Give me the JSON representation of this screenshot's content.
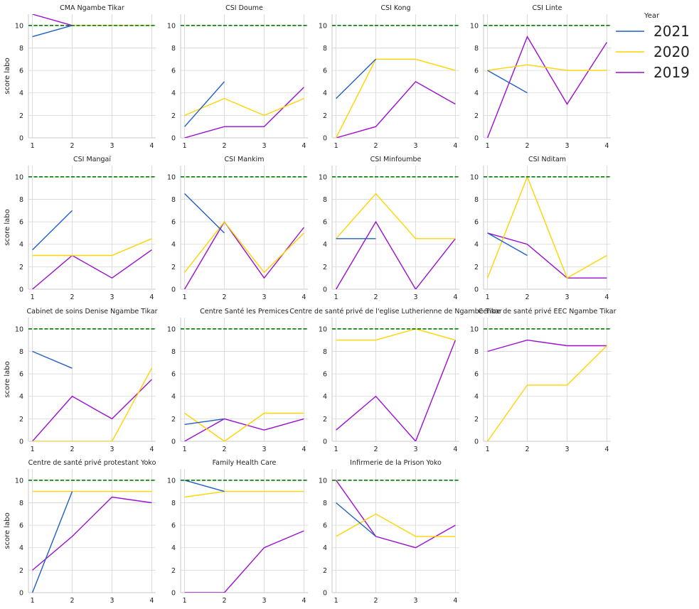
{
  "chart_data": {
    "type": "line",
    "layout": "facet-grid",
    "ylabel": "score labo",
    "xticks": [
      1,
      2,
      3,
      4
    ],
    "yticks": [
      0,
      2,
      4,
      6,
      8,
      10
    ],
    "xlim": [
      0.9,
      4.1
    ],
    "ylim": [
      0,
      11
    ],
    "grid": true,
    "reference_line": {
      "y": 10,
      "color": "#007a00",
      "style": "dashed"
    },
    "legend": {
      "title": "Year",
      "placement": "right",
      "entries": [
        {
          "name": "2021",
          "color": "#1f5fc4"
        },
        {
          "name": "2020",
          "color": "#ffd400"
        },
        {
          "name": "2019",
          "color": "#9b0fd0"
        }
      ]
    },
    "panels": [
      {
        "title": "CMA Ngambe Tikar",
        "series": {
          "2021": [
            [
              1,
              9
            ],
            [
              2,
              10
            ]
          ],
          "2020": [
            [
              2,
              10
            ],
            [
              3,
              10
            ],
            [
              4,
              10
            ]
          ],
          "2019": [
            [
              1,
              11
            ],
            [
              2,
              10
            ]
          ]
        }
      },
      {
        "title": "CSI Doume",
        "series": {
          "2021": [
            [
              1,
              1
            ],
            [
              2,
              5
            ]
          ],
          "2020": [
            [
              1,
              2
            ],
            [
              2,
              3.5
            ],
            [
              3,
              2
            ],
            [
              4,
              3.5
            ]
          ],
          "2019": [
            [
              1,
              0
            ],
            [
              2,
              1
            ],
            [
              3,
              1
            ],
            [
              4,
              4.5
            ]
          ]
        }
      },
      {
        "title": "CSI Kong",
        "series": {
          "2021": [
            [
              1,
              3.5
            ],
            [
              2,
              7
            ]
          ],
          "2020": [
            [
              1,
              0
            ],
            [
              2,
              7
            ],
            [
              3,
              7
            ],
            [
              4,
              6
            ]
          ],
          "2019": [
            [
              1,
              0
            ],
            [
              2,
              1
            ],
            [
              3,
              5
            ],
            [
              4,
              3
            ]
          ]
        }
      },
      {
        "title": "CSI Linte",
        "series": {
          "2021": [
            [
              1,
              6
            ],
            [
              2,
              4
            ]
          ],
          "2020": [
            [
              1,
              6
            ],
            [
              2,
              6.5
            ],
            [
              3,
              6
            ],
            [
              4,
              6
            ]
          ],
          "2019": [
            [
              1,
              0
            ],
            [
              2,
              9
            ],
            [
              3,
              3
            ],
            [
              4,
              8.5
            ]
          ]
        }
      },
      {
        "title": "CSI Mangaï",
        "series": {
          "2021": [
            [
              1,
              3.5
            ],
            [
              2,
              7
            ]
          ],
          "2020": [
            [
              1,
              3
            ],
            [
              2,
              3
            ],
            [
              3,
              3
            ],
            [
              4,
              4.5
            ]
          ],
          "2019": [
            [
              1,
              0
            ],
            [
              2,
              3
            ],
            [
              3,
              1
            ],
            [
              4,
              3.5
            ]
          ]
        }
      },
      {
        "title": "CSI Mankim",
        "series": {
          "2021": [
            [
              1,
              8.5
            ],
            [
              2,
              5
            ]
          ],
          "2020": [
            [
              1,
              1.5
            ],
            [
              2,
              6
            ],
            [
              3,
              1.5
            ],
            [
              4,
              5
            ]
          ],
          "2019": [
            [
              1,
              0
            ],
            [
              2,
              6
            ],
            [
              3,
              1
            ],
            [
              4,
              5.5
            ]
          ]
        }
      },
      {
        "title": "CSI Minfoumbe",
        "series": {
          "2021": [
            [
              1,
              4.5
            ],
            [
              2,
              4.5
            ]
          ],
          "2020": [
            [
              1,
              4.5
            ],
            [
              2,
              8.5
            ],
            [
              3,
              4.5
            ],
            [
              4,
              4.5
            ]
          ],
          "2019": [
            [
              1,
              0
            ],
            [
              2,
              6
            ],
            [
              3,
              0
            ],
            [
              4,
              4.5
            ]
          ]
        }
      },
      {
        "title": "CSI Nditam",
        "series": {
          "2021": [
            [
              1,
              5
            ],
            [
              2,
              3
            ]
          ],
          "2020": [
            [
              1,
              1
            ],
            [
              2,
              10
            ],
            [
              3,
              1
            ],
            [
              4,
              3
            ]
          ],
          "2019": [
            [
              1,
              5
            ],
            [
              2,
              4
            ],
            [
              3,
              1
            ],
            [
              4,
              1
            ]
          ]
        }
      },
      {
        "title": "Cabinet de soins Denise Ngambe Tikar",
        "series": {
          "2021": [
            [
              1,
              8
            ],
            [
              2,
              6.5
            ]
          ],
          "2020": [
            [
              1,
              0
            ],
            [
              2,
              0
            ],
            [
              3,
              0
            ],
            [
              4,
              6.5
            ]
          ],
          "2019": [
            [
              1,
              0
            ],
            [
              2,
              4
            ],
            [
              3,
              2
            ],
            [
              4,
              5.5
            ]
          ]
        }
      },
      {
        "title": "Centre Santé les Premices",
        "series": {
          "2021": [
            [
              1,
              1.5
            ],
            [
              2,
              2
            ]
          ],
          "2020": [
            [
              1,
              2.5
            ],
            [
              2,
              0
            ],
            [
              3,
              2.5
            ],
            [
              4,
              2.5
            ]
          ],
          "2019": [
            [
              1,
              0
            ],
            [
              2,
              2
            ],
            [
              3,
              1
            ],
            [
              4,
              2
            ]
          ]
        }
      },
      {
        "title": "Centre de santé privé  de l'eglise Lutherienne de Ngambe Tikar",
        "series": {
          "2021": [],
          "2020": [
            [
              1,
              9
            ],
            [
              2,
              9
            ],
            [
              3,
              10
            ],
            [
              4,
              9
            ]
          ],
          "2019": [
            [
              1,
              1
            ],
            [
              2,
              4
            ],
            [
              3,
              0
            ],
            [
              4,
              9
            ]
          ]
        }
      },
      {
        "title": "Centre de santé privé EEC Ngambe Tikar",
        "series": {
          "2021": [],
          "2020": [
            [
              1,
              0
            ],
            [
              2,
              5
            ],
            [
              3,
              5
            ],
            [
              4,
              8.5
            ]
          ],
          "2019": [
            [
              1,
              8
            ],
            [
              2,
              9
            ],
            [
              3,
              8.5
            ],
            [
              4,
              8.5
            ]
          ]
        }
      },
      {
        "title": "Centre de santé privé protestant Yoko",
        "series": {
          "2021": [
            [
              1,
              0
            ],
            [
              2,
              9
            ]
          ],
          "2020": [
            [
              1,
              9
            ],
            [
              2,
              9
            ],
            [
              3,
              9
            ],
            [
              4,
              9
            ]
          ],
          "2019": [
            [
              1,
              2
            ],
            [
              2,
              5
            ],
            [
              3,
              8.5
            ],
            [
              4,
              8
            ]
          ]
        }
      },
      {
        "title": "Family Health Care",
        "series": {
          "2021": [
            [
              1,
              10
            ],
            [
              2,
              9
            ]
          ],
          "2020": [
            [
              1,
              8.5
            ],
            [
              2,
              9
            ],
            [
              3,
              9
            ],
            [
              4,
              9
            ]
          ],
          "2019": [
            [
              1,
              0
            ],
            [
              2,
              0
            ],
            [
              3,
              4
            ],
            [
              4,
              5.5
            ]
          ]
        }
      },
      {
        "title": "Infirmerie de la Prison Yoko",
        "series": {
          "2021": [
            [
              1,
              8
            ],
            [
              2,
              5
            ]
          ],
          "2020": [
            [
              1,
              5
            ],
            [
              2,
              7
            ],
            [
              3,
              5
            ],
            [
              4,
              5
            ]
          ],
          "2019": [
            [
              1,
              10
            ],
            [
              2,
              5
            ],
            [
              3,
              4
            ],
            [
              4,
              6
            ]
          ]
        }
      }
    ]
  }
}
